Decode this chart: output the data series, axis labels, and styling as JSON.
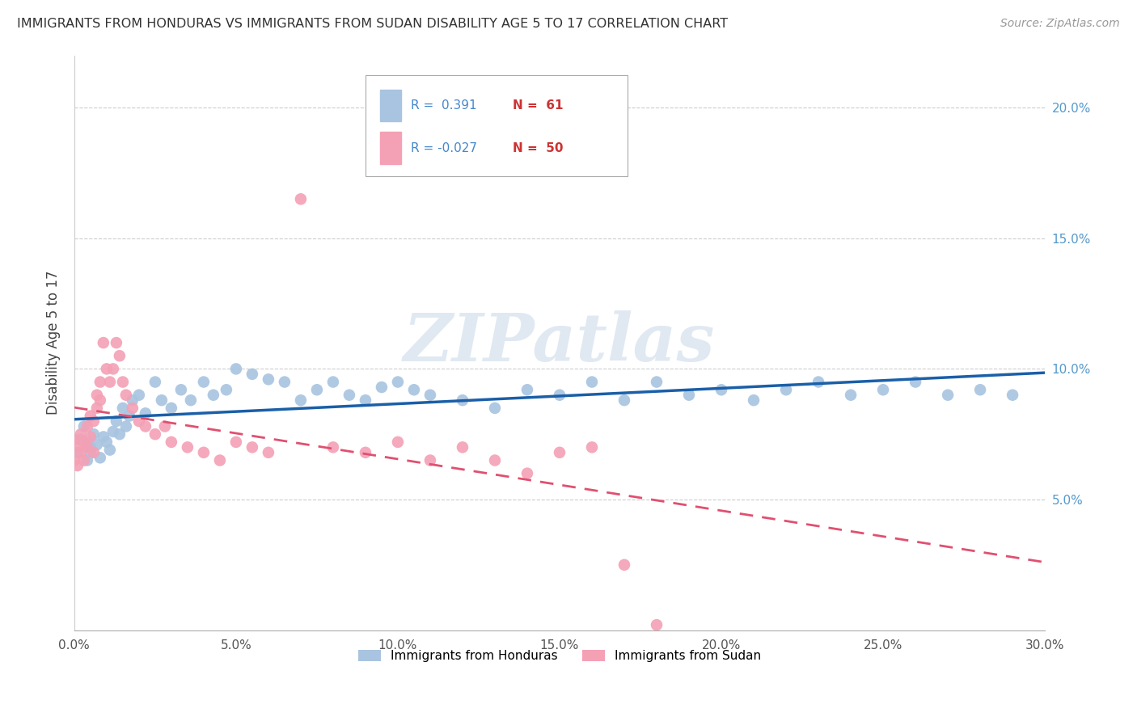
{
  "title": "IMMIGRANTS FROM HONDURAS VS IMMIGRANTS FROM SUDAN DISABILITY AGE 5 TO 17 CORRELATION CHART",
  "source": "Source: ZipAtlas.com",
  "ylabel": "Disability Age 5 to 17",
  "xlim": [
    0.0,
    0.3
  ],
  "ylim": [
    0.0,
    0.22
  ],
  "xticks": [
    0.0,
    0.05,
    0.1,
    0.15,
    0.2,
    0.25,
    0.3
  ],
  "xtick_labels": [
    "0.0%",
    "5.0%",
    "10.0%",
    "15.0%",
    "20.0%",
    "25.0%",
    "30.0%"
  ],
  "yticks": [
    0.05,
    0.1,
    0.15,
    0.2
  ],
  "ytick_labels": [
    "5.0%",
    "10.0%",
    "15.0%",
    "20.0%"
  ],
  "honduras_color": "#a8c4e0",
  "sudan_color": "#f4a0b5",
  "honduras_line_color": "#1a5fa8",
  "sudan_line_color": "#e05070",
  "legend_r_honduras": "R =  0.391",
  "legend_n_honduras": "N =  61",
  "legend_r_sudan": "R = -0.027",
  "legend_n_sudan": "N =  50",
  "legend_label_honduras": "Immigrants from Honduras",
  "legend_label_sudan": "Immigrants from Sudan",
  "watermark": "ZIPatlas",
  "honduras_x": [
    0.001,
    0.002,
    0.003,
    0.004,
    0.004,
    0.005,
    0.005,
    0.006,
    0.007,
    0.008,
    0.009,
    0.01,
    0.011,
    0.012,
    0.013,
    0.014,
    0.015,
    0.016,
    0.017,
    0.018,
    0.02,
    0.022,
    0.025,
    0.027,
    0.03,
    0.033,
    0.036,
    0.04,
    0.043,
    0.047,
    0.05,
    0.055,
    0.06,
    0.065,
    0.07,
    0.075,
    0.08,
    0.085,
    0.09,
    0.095,
    0.1,
    0.105,
    0.11,
    0.12,
    0.13,
    0.14,
    0.15,
    0.16,
    0.17,
    0.18,
    0.19,
    0.2,
    0.21,
    0.22,
    0.23,
    0.24,
    0.25,
    0.26,
    0.27,
    0.28,
    0.29
  ],
  "honduras_y": [
    0.068,
    0.073,
    0.078,
    0.065,
    0.072,
    0.07,
    0.068,
    0.075,
    0.071,
    0.066,
    0.074,
    0.072,
    0.069,
    0.076,
    0.08,
    0.075,
    0.085,
    0.078,
    0.082,
    0.088,
    0.09,
    0.083,
    0.095,
    0.088,
    0.085,
    0.092,
    0.088,
    0.095,
    0.09,
    0.092,
    0.1,
    0.098,
    0.096,
    0.095,
    0.088,
    0.092,
    0.095,
    0.09,
    0.088,
    0.093,
    0.095,
    0.092,
    0.09,
    0.088,
    0.085,
    0.092,
    0.09,
    0.095,
    0.088,
    0.095,
    0.09,
    0.092,
    0.088,
    0.092,
    0.095,
    0.09,
    0.092,
    0.095,
    0.09,
    0.092,
    0.09
  ],
  "sudan_x": [
    0.0,
    0.0,
    0.001,
    0.001,
    0.002,
    0.002,
    0.003,
    0.003,
    0.004,
    0.004,
    0.005,
    0.005,
    0.006,
    0.006,
    0.007,
    0.007,
    0.008,
    0.008,
    0.009,
    0.01,
    0.011,
    0.012,
    0.013,
    0.014,
    0.015,
    0.016,
    0.018,
    0.02,
    0.022,
    0.025,
    0.028,
    0.03,
    0.035,
    0.04,
    0.045,
    0.05,
    0.055,
    0.06,
    0.07,
    0.08,
    0.09,
    0.1,
    0.11,
    0.12,
    0.13,
    0.14,
    0.15,
    0.16,
    0.17,
    0.18
  ],
  "sudan_y": [
    0.073,
    0.065,
    0.07,
    0.063,
    0.068,
    0.075,
    0.072,
    0.065,
    0.078,
    0.07,
    0.082,
    0.074,
    0.08,
    0.068,
    0.09,
    0.085,
    0.095,
    0.088,
    0.11,
    0.1,
    0.095,
    0.1,
    0.11,
    0.105,
    0.095,
    0.09,
    0.085,
    0.08,
    0.078,
    0.075,
    0.078,
    0.072,
    0.07,
    0.068,
    0.065,
    0.072,
    0.07,
    0.068,
    0.165,
    0.07,
    0.068,
    0.072,
    0.065,
    0.07,
    0.065,
    0.06,
    0.068,
    0.07,
    0.025,
    0.002
  ]
}
